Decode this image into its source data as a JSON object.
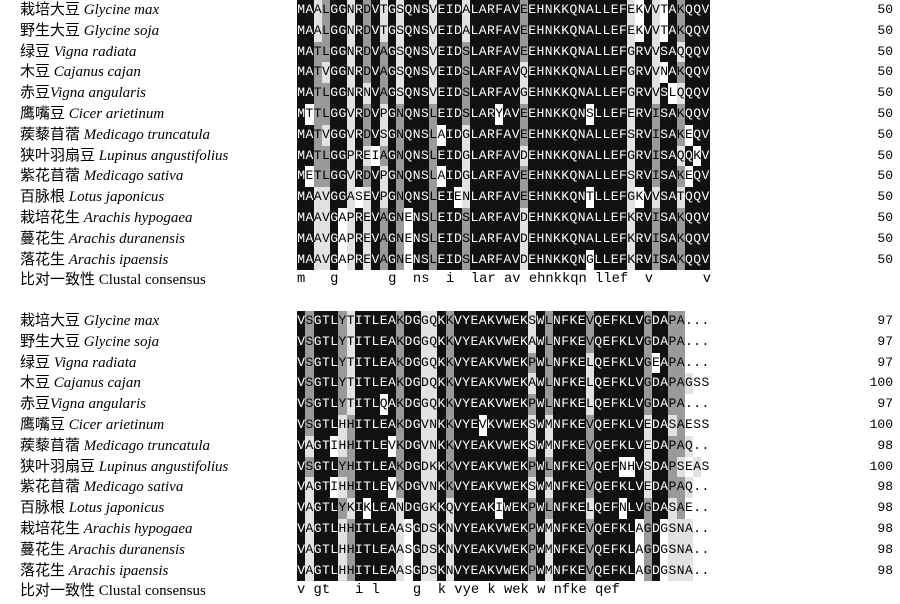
{
  "colors": {
    "identical": "#111111",
    "high": "#9a9a9a",
    "medium": "#e2e2e2",
    "none": "#ffffff"
  },
  "species": [
    {
      "cn": "栽培大豆 ",
      "latin": "Glycine max"
    },
    {
      "cn": "野生大豆 ",
      "latin": "Glycine soja"
    },
    {
      "cn": "绿豆 ",
      "latin": "Vigna radiata"
    },
    {
      "cn": "木豆 ",
      "latin": "Cajanus cajan"
    },
    {
      "cn": "赤豆",
      "latin": "Vigna angularis"
    },
    {
      "cn": "鹰嘴豆 ",
      "latin": "Cicer arietinum"
    },
    {
      "cn": "蒺藜苜蓿 ",
      "latin": "Medicago truncatula"
    },
    {
      "cn": "狭叶羽扇豆 ",
      "latin": "Lupinus angustifolius"
    },
    {
      "cn": "紫花苜蓿 ",
      "latin": "Medicago sativa"
    },
    {
      "cn": "百脉根 ",
      "latin": "Lotus japonicus"
    },
    {
      "cn": "栽培花生 ",
      "latin": "Arachis hypogaea"
    },
    {
      "cn": "蔓花生 ",
      "latin": "Arachis duranensis"
    },
    {
      "cn": "落花生 ",
      "latin": "Arachis ipaensis"
    }
  ],
  "consensus_label": "比对一致性 Clustal consensus",
  "blocks": [
    {
      "sequences": [
        "MAALGGNRDVTGSQNSVEIDALARFAVEEHNKKQNALLEFEKVVTAKQQV",
        "MAALGGNRDVTGSQNSVEIDALARFAVEEHNKKQNALLEFEKVVTAKQQV",
        "MATLGGNRDVAGSQNSVEIDSLARFAVEEHNKKQNALLEFGRVVSAQQQV",
        "MATVGGNRDVAGSQNSVEIDSLARFAVQEHNKKQNALLEFGRVVNAKQQV",
        "MATLGGNRNVAGSQNSVEIDSLARFAVGEHNKKQNALLEFGRVVSLQQQV",
        "MTTLGGVRDVPGNQNSLEIDSLARYAVEEHNKKQNSLLEFERVISAKQQV",
        "MATVGGVRDVSGNQNSLAIDGLARFAVEEHNKKQNALLEFSRVISAKEQV",
        "MATLGGPREIAGNQNSLEIDGLARFAVDEHNKKQNALLEFGRVISAQQKV",
        "METLGGVRDVPGNQNSLAIDGLARFAVEEHNKKQNALLEFSRVISAKEQV",
        "MAAVGGASEVPGNQNSLEIENLARFAVEEHNKKQNTLLEFGKVVSATQQV",
        "MAAVGAPREVAGNENSLEIDSLARFAVDEHNKKQNALLEFKRVISAKQQV",
        "MAAVGAPREVAGNENSLEIDSLARFAVDEHNKKQNALLEFKRVISAKQQV",
        "MAAVGAPREVAGNENSLEIDSLARFAVDEHNKKQNGLLEFKRVISAKQQV"
      ],
      "numbers": [
        "50",
        "50",
        "50",
        "50",
        "50",
        "50",
        "50",
        "50",
        "50",
        "50",
        "50",
        "50",
        "50"
      ],
      "consensus": "m   g      g  ns  i  lar av ehnkkqn llef  v      v"
    },
    {
      "sequences": [
        "VSGTLYTITLEAKDGGQKKVYEAKVWEKSWLNFKEVQEFKLVGDAPA...",
        "VSGTLYTITLEAKDGGQKKVYEAKVWEKAWLNFKEVQEFKLVGDAPA...",
        "VSGTLYTITLEAKDGGQKKVYEAKVWEKPWLNFKELQEFKLVGEAPA...",
        "VSGTLYTITLEAKDGDQKKVYEAKVWEKAWLNFKELQEFKLVGDAPAGSS",
        "VSGTLYTITLQAKDGGQKKVYEAKVWEKPWLNFKELQEFKLVGDAPA...",
        "VSGTLHHITLEAKDGVNKKVYEVKVWEKSWMNFKEVQEFKLVEDASAESS",
        "VAGTIHHITLEVKDGVNKKVYEAKVWEKSWMNFKEVQEFKLVEDAPAQ..",
        "VSGTLYHITLEAKDGDKKKVYEAKVWEKPWLNFKEVQEFNHVSDAPSEAS",
        "VAGTIHHITLEVKDGVNKKVYEAKVWEKSWMNFKEVQEFKLVEDAPAQ..",
        "VAGTLYKIKLEANDGGKKQVYEAKIWEKPWLNFKELQEFNLVGDASAE..",
        "VAGTLHHITLEAASGDSKNVYEAKVWEKPWMNFKEVQEFKLAGDGSNA..",
        "VAGTLHHITLEAASGDSKNVYEAKVWEKPWMNFKEVQEFKLAGDGSNA..",
        "VAGTLHHITLEAASGDSKNVYEAKVWEKPWMNFKEVQEFKLAGDGSNA.."
      ],
      "numbers": [
        "97",
        "97",
        "97",
        "100",
        "97",
        "100",
        "98",
        "100",
        "98",
        "98",
        "98",
        "98",
        "98"
      ],
      "consensus": "v gt   i l    g  k vye k wek w nfke qef"
    }
  ]
}
